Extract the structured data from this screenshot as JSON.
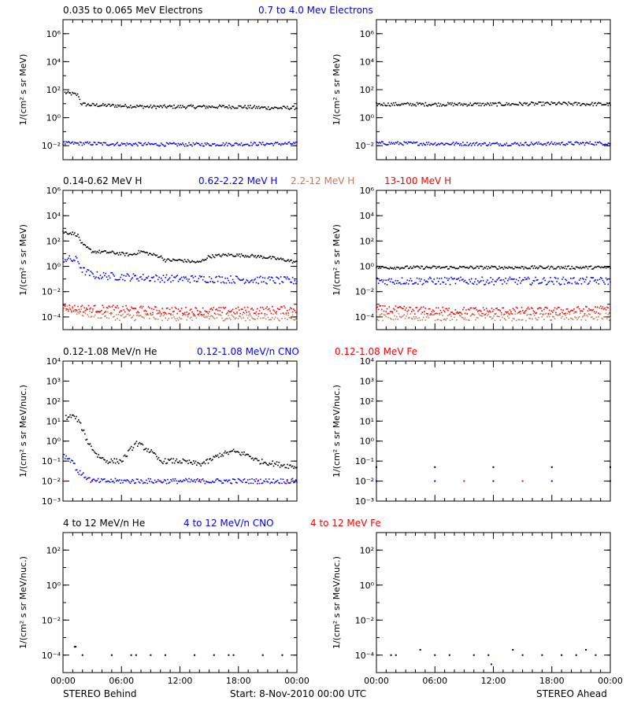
{
  "colors": {
    "black": "#000000",
    "blue": "#0000ff",
    "brown": "#c8785a",
    "red": "#ff0000"
  },
  "footer": {
    "left": "STEREO Behind",
    "center": "Start:  8-Nov-2010 00:00 UTC",
    "right": "STEREO Ahead"
  },
  "chart_data": [
    {
      "type": "scatter",
      "row": 0,
      "header": [
        {
          "text": "0.035 to 0.065 MeV Electrons",
          "color": "#000000"
        },
        {
          "text": "0.7 to 4.0 Mev Electrons",
          "color": "#0000ff"
        }
      ],
      "ylabel": "1/(cm² s sr MeV)",
      "yscale": "log",
      "ylim_exp": [
        -3,
        7
      ],
      "yticks_exp": [
        -2,
        0,
        2,
        4,
        6
      ],
      "xlim_hours": [
        0,
        24
      ],
      "xticks": [
        "00:00",
        "06:00",
        "12:00",
        "18:00",
        "00:00"
      ],
      "panels": [
        {
          "side": "STEREO Behind",
          "series": [
            {
              "color": "#000000",
              "points": [
                [
                  0.2,
                  60
                ],
                [
                  1.0,
                  50
                ],
                [
                  1.6,
                  40
                ],
                [
                  1.8,
                  12
                ],
                [
                  2,
                  9
                ],
                [
                  3,
                  8
                ],
                [
                  6,
                  7
                ],
                [
                  9,
                  6
                ],
                [
                  12,
                  6
                ],
                [
                  15,
                  6
                ],
                [
                  18,
                  6
                ],
                [
                  21,
                  5
                ],
                [
                  24,
                  5
                ]
              ]
            },
            {
              "color": "#0000ff",
              "points": [
                [
                  0,
                  0.015
                ],
                [
                  6,
                  0.013
                ],
                [
                  12,
                  0.012
                ],
                [
                  18,
                  0.013
                ],
                [
                  24,
                  0.014
                ]
              ]
            }
          ]
        },
        {
          "side": "STEREO Ahead",
          "series": [
            {
              "color": "#000000",
              "points": [
                [
                  0,
                  9
                ],
                [
                  6,
                  9
                ],
                [
                  12,
                  9
                ],
                [
                  18,
                  10
                ],
                [
                  24,
                  9
                ]
              ]
            },
            {
              "color": "#0000ff",
              "points": [
                [
                  0,
                  0.015
                ],
                [
                  6,
                  0.014
                ],
                [
                  12,
                  0.013
                ],
                [
                  18,
                  0.014
                ],
                [
                  24,
                  0.015
                ]
              ]
            }
          ]
        }
      ]
    },
    {
      "type": "scatter",
      "row": 1,
      "header": [
        {
          "text": "0.14-0.62 MeV H",
          "color": "#000000"
        },
        {
          "text": "0.62-2.22 MeV H",
          "color": "#0000ff"
        },
        {
          "text": "2.2-12 MeV H",
          "color": "#c8785a"
        },
        {
          "text": "13-100 MeV H",
          "color": "#ff0000"
        }
      ],
      "ylabel": "1/(cm² s sr MeV)",
      "yscale": "log",
      "ylim_exp": [
        -5,
        6
      ],
      "yticks_exp": [
        -4,
        -2,
        0,
        2,
        4,
        6
      ],
      "xlim_hours": [
        0,
        24
      ],
      "xticks": [
        "00:00",
        "06:00",
        "12:00",
        "18:00",
        "00:00"
      ],
      "panels": [
        {
          "side": "STEREO Behind",
          "series": [
            {
              "color": "#000000",
              "points": [
                [
                  0,
                  500
                ],
                [
                  1,
                  400
                ],
                [
                  1.5,
                  300
                ],
                [
                  2,
                  50
                ],
                [
                  3,
                  15
                ],
                [
                  5,
                  12
                ],
                [
                  7,
                  8
                ],
                [
                  8,
                  15
                ],
                [
                  9,
                  9
                ],
                [
                  10,
                  6
                ],
                [
                  10.5,
                  3
                ],
                [
                  12,
                  3
                ],
                [
                  14,
                  2
                ],
                [
                  15,
                  6
                ],
                [
                  17,
                  8
                ],
                [
                  19,
                  7
                ],
                [
                  21,
                  5
                ],
                [
                  23,
                  3
                ],
                [
                  24,
                  2
                ]
              ]
            },
            {
              "color": "#0000ff",
              "points": [
                [
                  0,
                  4
                ],
                [
                  1.5,
                  3
                ],
                [
                  2,
                  0.5
                ],
                [
                  3,
                  0.2
                ],
                [
                  6,
                  0.15
                ],
                [
                  9,
                  0.12
                ],
                [
                  12,
                  0.1
                ],
                [
                  15,
                  0.1
                ],
                [
                  18,
                  0.09
                ],
                [
                  21,
                  0.08
                ],
                [
                  24,
                  0.07
                ]
              ]
            },
            {
              "color": "#c8785a",
              "points": [
                [
                  0,
                  0.0007
                ],
                [
                  2,
                  0.0002
                ],
                [
                  6,
                  0.0001
                ],
                [
                  12,
                  0.0001
                ],
                [
                  18,
                  0.0001
                ],
                [
                  24,
                  0.0001
                ]
              ]
            },
            {
              "color": "#ff0000",
              "points": [
                [
                  0,
                  0.0005
                ],
                [
                  6,
                  0.0004
                ],
                [
                  12,
                  0.0003
                ],
                [
                  18,
                  0.0003
                ],
                [
                  24,
                  0.0004
                ]
              ]
            }
          ]
        },
        {
          "side": "STEREO Ahead",
          "series": [
            {
              "color": "#000000",
              "points": [
                [
                  0,
                  0.8
                ],
                [
                  6,
                  0.8
                ],
                [
                  12,
                  0.8
                ],
                [
                  18,
                  0.8
                ],
                [
                  24,
                  0.8
                ]
              ]
            },
            {
              "color": "#0000ff",
              "points": [
                [
                  0,
                  0.07
                ],
                [
                  6,
                  0.07
                ],
                [
                  12,
                  0.07
                ],
                [
                  18,
                  0.07
                ],
                [
                  24,
                  0.07
                ]
              ]
            },
            {
              "color": "#c8785a",
              "points": [
                [
                  0,
                  0.0001
                ],
                [
                  12,
                  0.0001
                ],
                [
                  24,
                  0.0001
                ]
              ]
            },
            {
              "color": "#ff0000",
              "points": [
                [
                  0,
                  0.0004
                ],
                [
                  6,
                  0.0003
                ],
                [
                  12,
                  0.0003
                ],
                [
                  18,
                  0.0003
                ],
                [
                  24,
                  0.0004
                ]
              ]
            }
          ]
        }
      ]
    },
    {
      "type": "scatter",
      "row": 2,
      "header": [
        {
          "text": "0.12-1.08 MeV/n He",
          "color": "#000000"
        },
        {
          "text": "0.12-1.08 MeV/n CNO",
          "color": "#0000ff"
        },
        {
          "text": "0.12-1.08 MeV Fe",
          "color": "#ff0000"
        }
      ],
      "ylabel": "1/(cm² s sr MeV/nuc.)",
      "yscale": "log",
      "ylim_exp": [
        -3,
        4
      ],
      "yticks_exp": [
        -3,
        -2,
        -1,
        0,
        1,
        2,
        3,
        4
      ],
      "tick_style": "power10",
      "xlim_hours": [
        0,
        24
      ],
      "xticks": [
        "00:00",
        "06:00",
        "12:00",
        "18:00",
        "00:00"
      ],
      "panels": [
        {
          "side": "STEREO Behind",
          "series": [
            {
              "color": "#000000",
              "points": [
                [
                  0.3,
                  15
                ],
                [
                  1,
                  18
                ],
                [
                  1.5,
                  12
                ],
                [
                  2,
                  4
                ],
                [
                  2.5,
                  1
                ],
                [
                  3.5,
                  0.2
                ],
                [
                  4.5,
                  0.1
                ],
                [
                  6,
                  0.1
                ],
                [
                  7.5,
                  0.8
                ],
                [
                  8,
                  0.6
                ],
                [
                  9,
                  0.3
                ],
                [
                  10,
                  0.1
                ],
                [
                  12,
                  0.1
                ],
                [
                  14,
                  0.07
                ],
                [
                  15,
                  0.1
                ],
                [
                  16,
                  0.2
                ],
                [
                  17.5,
                  0.3
                ],
                [
                  19,
                  0.2
                ],
                [
                  20,
                  0.1
                ],
                [
                  22,
                  0.07
                ],
                [
                  24,
                  0.05
                ]
              ]
            },
            {
              "color": "#0000ff",
              "points": [
                [
                  0,
                  0.2
                ],
                [
                  1,
                  0.1
                ],
                [
                  1.5,
                  0.03
                ],
                [
                  3,
                  0.01
                ],
                [
                  6,
                  0.01
                ],
                [
                  12,
                  0.01
                ],
                [
                  18,
                  0.01
                ],
                [
                  24,
                  0.01
                ]
              ]
            },
            {
              "color": "#ff0000",
              "points": [
                [
                  0,
                  0.01
                ],
                [
                  3,
                  0.01
                ],
                [
                  10,
                  0.01
                ],
                [
                  14,
                  0.01
                ],
                [
                  20,
                  0.01
                ],
                [
                  23,
                  0.01
                ]
              ]
            }
          ]
        },
        {
          "side": "STEREO Ahead",
          "series": [
            {
              "color": "#000000",
              "points": [
                [
                  0,
                  0.05
                ],
                [
                  6,
                  0.05
                ],
                [
                  12,
                  0.05
                ],
                [
                  18,
                  0.05
                ],
                [
                  24,
                  0.05
                ]
              ]
            },
            {
              "color": "#0000ff",
              "points": [
                [
                  0,
                  0.01
                ],
                [
                  6,
                  0.01
                ],
                [
                  12,
                  0.01
                ],
                [
                  18,
                  0.01
                ],
                [
                  24,
                  0.01
                ]
              ]
            },
            {
              "color": "#ff0000",
              "points": [
                [
                  9,
                  0.01
                ],
                [
                  15,
                  0.01
                ]
              ]
            }
          ]
        }
      ]
    },
    {
      "type": "scatter",
      "row": 3,
      "header": [
        {
          "text": "4 to 12 MeV/n He",
          "color": "#000000"
        },
        {
          "text": "4 to 12 MeV/n CNO",
          "color": "#0000ff"
        },
        {
          "text": "4 to 12 MeV Fe",
          "color": "#ff0000"
        }
      ],
      "ylabel": "1/(cm² s sr MeV/nuc.)",
      "yscale": "log",
      "ylim_exp": [
        -5,
        3
      ],
      "yticks_exp": [
        -4,
        -2,
        0,
        2
      ],
      "xlim_hours": [
        0,
        24
      ],
      "xticks": [
        "00:00",
        "06:00",
        "12:00",
        "18:00",
        "00:00"
      ],
      "panels": [
        {
          "side": "STEREO Behind",
          "series": [
            {
              "color": "#000000",
              "points": [
                [
                  1.2,
                  0.0003
                ],
                [
                  1.3,
                  0.0003
                ],
                [
                  2,
                  0.0001
                ],
                [
                  5,
                  0.0001
                ],
                [
                  7,
                  0.0001
                ],
                [
                  7.5,
                  0.0001
                ],
                [
                  9,
                  0.0001
                ],
                [
                  10.5,
                  0.0001
                ],
                [
                  13.5,
                  0.0001
                ],
                [
                  15.5,
                  0.0001
                ],
                [
                  17,
                  0.0001
                ],
                [
                  17.5,
                  0.0001
                ],
                [
                  20.5,
                  0.0001
                ],
                [
                  22.5,
                  0.0001
                ]
              ]
            }
          ]
        },
        {
          "side": "STEREO Ahead",
          "series": [
            {
              "color": "#000000",
              "points": [
                [
                  1.5,
                  0.0001
                ],
                [
                  2,
                  0.0001
                ],
                [
                  4.5,
                  0.0002
                ],
                [
                  6,
                  0.0001
                ],
                [
                  7.5,
                  0.0001
                ],
                [
                  10,
                  0.0001
                ],
                [
                  11.5,
                  0.0001
                ],
                [
                  14,
                  0.0002
                ],
                [
                  15,
                  0.0001
                ],
                [
                  17,
                  0.0001
                ],
                [
                  19,
                  0.0001
                ],
                [
                  20.5,
                  0.0001
                ],
                [
                  21.5,
                  0.0002
                ],
                [
                  22.5,
                  0.0001
                ]
              ]
            },
            {
              "color": "#0000ff",
              "points": [
                [
                  11.8,
                  3e-05
                ]
              ]
            }
          ]
        }
      ]
    }
  ]
}
